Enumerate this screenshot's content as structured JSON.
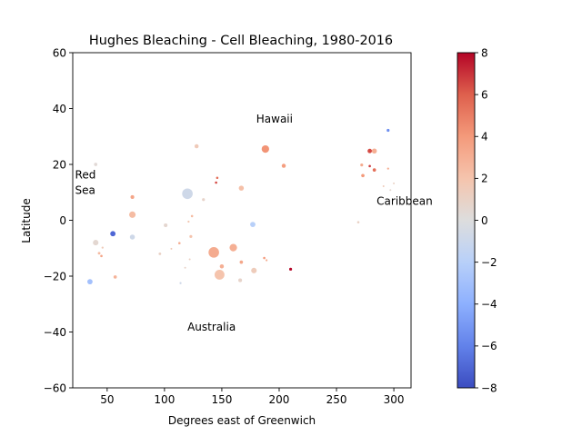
{
  "chart_data": {
    "type": "scatter",
    "title": "Hughes Bleaching - Cell Bleaching, 1980-2016",
    "xlabel": "Degrees east of Greenwich",
    "ylabel": "Latitude",
    "xlim": [
      20,
      315
    ],
    "ylim": [
      -60,
      60
    ],
    "xticks": [
      50,
      100,
      150,
      200,
      250,
      300
    ],
    "yticks": [
      -60,
      -40,
      -20,
      0,
      20,
      40,
      60
    ],
    "grid": false,
    "colorbar": {
      "cmap": "coolwarm",
      "range": [
        -8,
        8
      ],
      "ticks": [
        -8,
        -6,
        -4,
        -2,
        0,
        2,
        4,
        6,
        8
      ]
    },
    "annotations": [
      {
        "text": "Hawaii",
        "x": 180,
        "y": 35
      },
      {
        "text": "Red",
        "x": 22,
        "y": 15
      },
      {
        "text": "Sea",
        "x": 22,
        "y": 9.5
      },
      {
        "text": "Caribbean",
        "x": 285,
        "y": 5.5
      },
      {
        "text": "Australia",
        "x": 120,
        "y": -39.5
      }
    ],
    "points": [
      {
        "x": 120,
        "y": 9.5,
        "v": -0.8,
        "s": 80
      },
      {
        "x": 143,
        "y": -11.5,
        "v": 3.2,
        "s": 80
      },
      {
        "x": 148,
        "y": -19.5,
        "v": 2.0,
        "s": 70
      },
      {
        "x": 160,
        "y": -9.8,
        "v": 3.0,
        "s": 40
      },
      {
        "x": 188,
        "y": 25.5,
        "v": 4.2,
        "s": 40
      },
      {
        "x": 72,
        "y": 2,
        "v": 2.4,
        "s": 30
      },
      {
        "x": 55,
        "y": -4.8,
        "v": -7.0,
        "s": 20
      },
      {
        "x": 35,
        "y": -22,
        "v": -3.0,
        "s": 20
      },
      {
        "x": 40,
        "y": -8,
        "v": 0.5,
        "s": 22
      },
      {
        "x": 72,
        "y": -6,
        "v": -0.8,
        "s": 18
      },
      {
        "x": 177,
        "y": -1.5,
        "v": -2.0,
        "s": 20
      },
      {
        "x": 178,
        "y": -18,
        "v": 1.4,
        "s": 22
      },
      {
        "x": 167,
        "y": 11.5,
        "v": 2.2,
        "s": 18
      },
      {
        "x": 128,
        "y": 26.5,
        "v": 1.5,
        "s": 12
      },
      {
        "x": 150,
        "y": -16.5,
        "v": 3.0,
        "s": 12
      },
      {
        "x": 167,
        "y": -15,
        "v": 3.4,
        "s": 8
      },
      {
        "x": 166,
        "y": -21.5,
        "v": 0.8,
        "s": 10
      },
      {
        "x": 204,
        "y": 19.5,
        "v": 3.8,
        "s": 12
      },
      {
        "x": 210,
        "y": -17.5,
        "v": 8.0,
        "s": 6
      },
      {
        "x": 72,
        "y": 8.3,
        "v": 3.5,
        "s": 10
      },
      {
        "x": 57,
        "y": -20.3,
        "v": 2.8,
        "s": 8
      },
      {
        "x": 40,
        "y": 20,
        "v": 0.3,
        "s": 8
      },
      {
        "x": 101,
        "y": -1.8,
        "v": 0.6,
        "s": 10
      },
      {
        "x": 134,
        "y": 7.4,
        "v": 0.8,
        "s": 6
      },
      {
        "x": 145,
        "y": 13.5,
        "v": 6.5,
        "s": 4
      },
      {
        "x": 146,
        "y": 15.2,
        "v": 5.5,
        "s": 4
      },
      {
        "x": 123,
        "y": -5.8,
        "v": 2.0,
        "s": 6
      },
      {
        "x": 124,
        "y": 1.5,
        "v": 2.5,
        "s": 4
      },
      {
        "x": 121,
        "y": -0.5,
        "v": 1.8,
        "s": 3
      },
      {
        "x": 113,
        "y": -8.2,
        "v": 3.0,
        "s": 4
      },
      {
        "x": 96,
        "y": -12,
        "v": 1.0,
        "s": 5
      },
      {
        "x": 106,
        "y": -10.2,
        "v": 1.5,
        "s": 2
      },
      {
        "x": 114,
        "y": -22.5,
        "v": -0.8,
        "s": 3
      },
      {
        "x": 118,
        "y": -17,
        "v": 0.9,
        "s": 2
      },
      {
        "x": 122,
        "y": -14,
        "v": 1.2,
        "s": 2
      },
      {
        "x": 43,
        "y": -11.8,
        "v": 2.5,
        "s": 5
      },
      {
        "x": 45,
        "y": -12.8,
        "v": 3.5,
        "s": 4
      },
      {
        "x": 46,
        "y": -9.8,
        "v": 1.5,
        "s": 3
      },
      {
        "x": 187,
        "y": -13.5,
        "v": 4.0,
        "s": 4
      },
      {
        "x": 189,
        "y": -14.3,
        "v": 3.0,
        "s": 3
      },
      {
        "x": 269,
        "y": -0.7,
        "v": 1.0,
        "s": 4
      },
      {
        "x": 295,
        "y": 32.2,
        "v": -5.5,
        "s": 6
      },
      {
        "x": 279,
        "y": 24.8,
        "v": 6.5,
        "s": 14
      },
      {
        "x": 283,
        "y": 24.8,
        "v": 3.0,
        "s": 18
      },
      {
        "x": 272,
        "y": 19.8,
        "v": 3.2,
        "s": 6
      },
      {
        "x": 279,
        "y": 19.4,
        "v": 6.8,
        "s": 4
      },
      {
        "x": 283,
        "y": 18,
        "v": 5.5,
        "s": 8
      },
      {
        "x": 273,
        "y": 16,
        "v": 4.0,
        "s": 8
      },
      {
        "x": 295,
        "y": 18.5,
        "v": 3.0,
        "s": 3
      },
      {
        "x": 291,
        "y": 12.2,
        "v": 1.5,
        "s": 2
      },
      {
        "x": 300,
        "y": 13.2,
        "v": 1.0,
        "s": 2
      },
      {
        "x": 297,
        "y": 10.8,
        "v": 0.5,
        "s": 2
      }
    ]
  }
}
